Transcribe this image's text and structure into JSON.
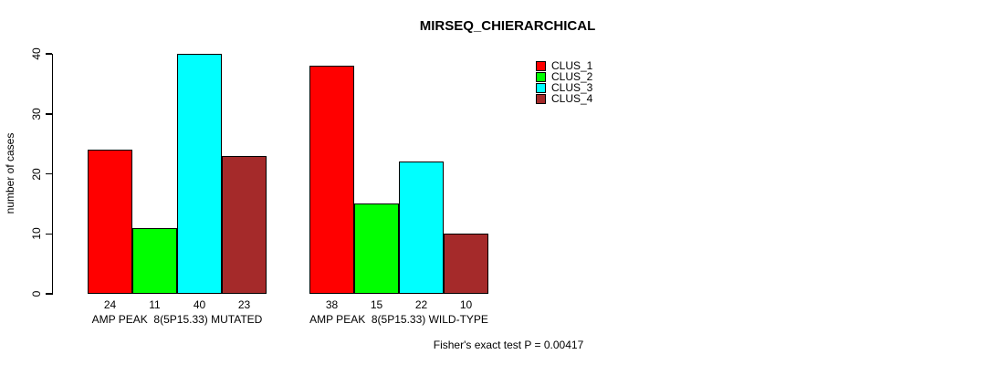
{
  "chart_data": {
    "type": "bar",
    "title": "MIRSEQ_CHIERARCHICAL",
    "xlabel": "",
    "ylabel": "number of cases",
    "ylim": [
      0,
      40
    ],
    "yticks": [
      "0",
      "10",
      "20",
      "30",
      "40"
    ],
    "grid": false,
    "legend_position": "top-right",
    "categories": [
      "AMP PEAK  8(5P15.33) MUTATED",
      "AMP PEAK  8(5P15.33) WILD-TYPE"
    ],
    "series": [
      {
        "name": "CLUS_1",
        "color": "#FF0000",
        "values": [
          24,
          38
        ]
      },
      {
        "name": "CLUS_2",
        "color": "#00FF00",
        "values": [
          11,
          15
        ]
      },
      {
        "name": "CLUS_3",
        "color": "#00FFFF",
        "values": [
          40,
          22
        ]
      },
      {
        "name": "CLUS_4",
        "color": "#A52A2A",
        "values": [
          23,
          10
        ]
      }
    ],
    "bar_value_labels": {
      "group1": [
        "24",
        "11",
        "40",
        "23"
      ],
      "group2": [
        "38",
        "15",
        "22",
        "10"
      ]
    },
    "footnote": "Fisher's exact test P = 0.00417"
  }
}
